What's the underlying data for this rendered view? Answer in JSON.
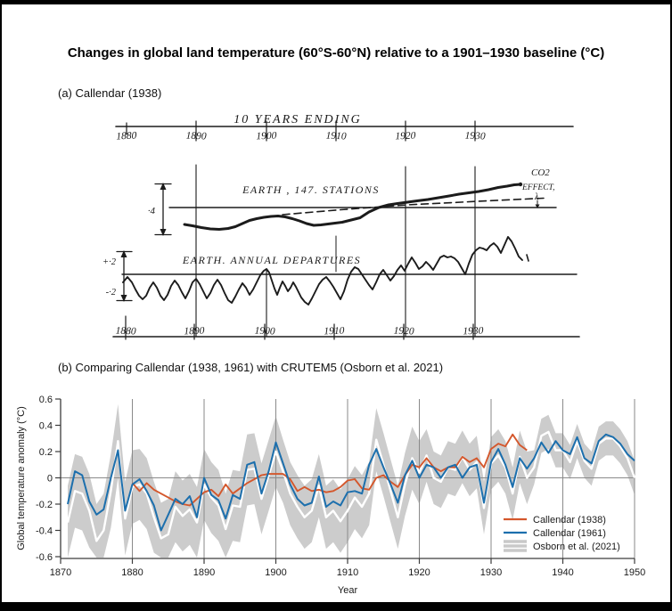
{
  "page": {
    "title": "Changes in global land temperature (60°S-60°N) relative to a 1901–1930 baseline (°C)"
  },
  "panel_a": {
    "heading": "(a) Callendar (1938)",
    "top_axis_title": "10 YEARS ENDING",
    "top_axis_years": [
      "1880",
      "1890",
      "1900",
      "1910",
      "1920",
      "1930"
    ],
    "bottom_axis_years": [
      "1880",
      "1890",
      "1900",
      "1910",
      "1920",
      "1930"
    ],
    "middle_series_label": "EARTH , 147. STATIONS",
    "lower_series_label": "EARTH. ANNUAL DEPARTURES",
    "co2_label_line1": "CO2",
    "co2_label_line2": "EFFECT,",
    "lambda_mark": "λ",
    "middle_scale_label": "·4",
    "lower_scale_plus": "+·2",
    "lower_scale_minus": "-·2"
  },
  "panel_b": {
    "heading": "(b) Comparing Callendar (1938, 1961) with CRUTEM5 (Osborn et al. 2021)",
    "ylabel": "Global temperature anomaly (°C)",
    "xlabel": "Year",
    "legend": [
      {
        "label": "Callendar (1938)",
        "color": "#d4572c",
        "type": "line"
      },
      {
        "label": "Callendar (1961)",
        "color": "#1c6fad",
        "type": "line"
      },
      {
        "label": "Osborn et al. (2021)",
        "color": "#c9c9c9",
        "type": "band"
      }
    ]
  },
  "chart_data": {
    "type": "line",
    "title": "(b) Comparing Callendar (1938, 1961) with CRUTEM5 (Osborn et al. 2021)",
    "xlabel": "Year",
    "ylabel": "Global temperature anomaly (°C)",
    "xlim": [
      1870,
      1950
    ],
    "ylim": [
      -0.6,
      0.6
    ],
    "xticks": [
      1870,
      1880,
      1890,
      1900,
      1910,
      1920,
      1930,
      1940,
      1950
    ],
    "ytick_labels": [
      "0.6",
      "0.4",
      "0.2",
      "0",
      "-0.2",
      "-0.4",
      "-0.6"
    ],
    "yticks": [
      0.6,
      0.4,
      0.2,
      0,
      -0.2,
      -0.4,
      -0.6
    ],
    "grid": true,
    "legend_position": "lower right",
    "series": [
      {
        "name": "Callendar (1938)",
        "color": "#d4572c",
        "start_year": 1880,
        "values": [
          -0.04,
          -0.1,
          -0.04,
          -0.09,
          -0.12,
          -0.15,
          -0.18,
          -0.2,
          -0.21,
          -0.16,
          -0.11,
          -0.09,
          -0.14,
          -0.05,
          -0.12,
          -0.08,
          -0.04,
          -0.01,
          0.02,
          0.03,
          0.03,
          0.03,
          -0.01,
          -0.1,
          -0.07,
          -0.1,
          -0.09,
          -0.11,
          -0.1,
          -0.07,
          -0.02,
          -0.01,
          -0.08,
          -0.09,
          0.0,
          0.02,
          -0.03,
          -0.07,
          0.02,
          0.1,
          0.08,
          0.15,
          0.08,
          0.05,
          0.08,
          0.08,
          0.16,
          0.12,
          0.15,
          0.08,
          0.22,
          0.26,
          0.24,
          0.33,
          0.25,
          0.21
        ]
      },
      {
        "name": "Callendar (1961)",
        "color": "#1c6fad",
        "start_year": 1871,
        "values": [
          -0.2,
          0.05,
          0.02,
          -0.18,
          -0.28,
          -0.24,
          0.0,
          0.21,
          -0.25,
          -0.05,
          -0.01,
          -0.1,
          -0.21,
          -0.4,
          -0.28,
          -0.16,
          -0.2,
          -0.14,
          -0.3,
          0.0,
          -0.13,
          -0.17,
          -0.31,
          -0.13,
          -0.16,
          0.1,
          0.12,
          -0.12,
          0.05,
          0.27,
          0.11,
          -0.05,
          -0.16,
          -0.21,
          -0.19,
          0.01,
          -0.22,
          -0.18,
          -0.21,
          -0.11,
          -0.1,
          -0.12,
          0.1,
          0.22,
          0.08,
          -0.05,
          -0.19,
          0.02,
          0.13,
          0.0,
          0.1,
          0.08,
          0.0,
          0.08,
          0.1,
          0.0,
          0.08,
          0.1,
          -0.19,
          0.12,
          0.22,
          0.1,
          -0.07,
          0.15,
          0.07,
          0.15,
          0.27,
          0.19,
          0.28,
          0.21,
          0.18,
          0.31,
          0.15,
          0.11,
          0.28,
          0.33,
          0.31,
          0.26,
          0.18,
          0.13
        ]
      },
      {
        "name": "CRUTEM5 central estimate (white line)",
        "color": "#ffffff",
        "start_year": 1871,
        "values": [
          -0.34,
          -0.1,
          -0.12,
          -0.25,
          -0.48,
          -0.4,
          -0.1,
          0.28,
          -0.31,
          -0.07,
          -0.05,
          -0.12,
          -0.3,
          -0.46,
          -0.43,
          -0.22,
          -0.29,
          -0.24,
          -0.34,
          -0.05,
          -0.15,
          -0.21,
          -0.39,
          -0.21,
          -0.22,
          0.06,
          0.07,
          -0.16,
          0.02,
          0.2,
          0.05,
          -0.12,
          -0.22,
          -0.3,
          -0.25,
          -0.06,
          -0.3,
          -0.25,
          -0.33,
          -0.25,
          -0.15,
          -0.22,
          -0.12,
          0.29,
          0.1,
          -0.1,
          -0.3,
          -0.05,
          0.15,
          0.04,
          0.17,
          0.0,
          -0.03,
          0.08,
          0.06,
          0.16,
          0.06,
          0.12,
          -0.23,
          0.11,
          0.17,
          0.08,
          -0.12,
          0.16,
          0.0,
          0.08,
          0.32,
          0.35,
          0.21,
          0.21,
          0.12,
          0.28,
          0.13,
          0.07,
          0.26,
          0.3,
          0.3,
          0.24,
          0.15,
          0.0
        ]
      },
      {
        "name": "Osborn et al. (2021) uncertainty band half-width",
        "color": "#cccccc",
        "start_year": 1871,
        "values": [
          0.28,
          0.28,
          0.28,
          0.28,
          0.28,
          0.28,
          0.28,
          0.28,
          0.28,
          0.28,
          0.27,
          0.27,
          0.27,
          0.27,
          0.27,
          0.27,
          0.27,
          0.27,
          0.27,
          0.27,
          0.27,
          0.27,
          0.27,
          0.27,
          0.27,
          0.27,
          0.27,
          0.27,
          0.27,
          0.27,
          0.24,
          0.24,
          0.24,
          0.24,
          0.24,
          0.24,
          0.24,
          0.24,
          0.24,
          0.24,
          0.24,
          0.24,
          0.24,
          0.24,
          0.24,
          0.24,
          0.24,
          0.24,
          0.24,
          0.24,
          0.2,
          0.2,
          0.2,
          0.2,
          0.2,
          0.2,
          0.2,
          0.2,
          0.2,
          0.2,
          0.2,
          0.2,
          0.2,
          0.2,
          0.2,
          0.13,
          0.13,
          0.13,
          0.13,
          0.13,
          0.13,
          0.13,
          0.13,
          0.13,
          0.13,
          0.13,
          0.13,
          0.13,
          0.13,
          0.13
        ]
      }
    ]
  }
}
